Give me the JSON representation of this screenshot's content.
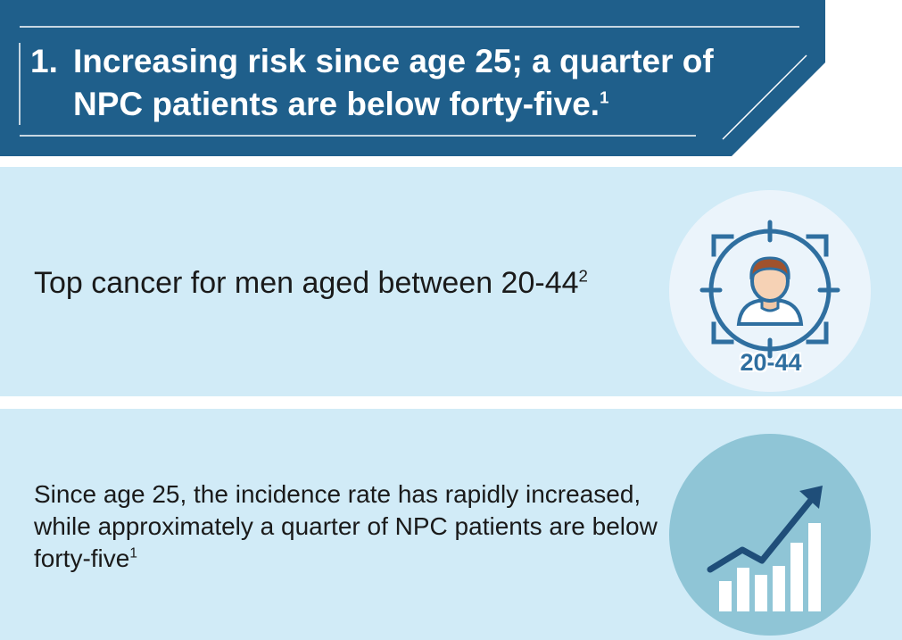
{
  "header": {
    "number": "1.",
    "title": "Increasing risk since age 25; a quarter of NPC patients are below forty-five.",
    "sup": "1",
    "bg_color": "#1f5f8b"
  },
  "panels": [
    {
      "text": "Top cancer for men aged between 20-44",
      "sup": "2",
      "icon": "target-person-icon",
      "badge": "20-44",
      "bg_color": "#d1ebf7"
    },
    {
      "text": "Since age 25, the incidence rate has rapidly increased, while approximately a quarter of NPC patients are below forty-five",
      "sup": "1",
      "icon": "rising-chart-icon",
      "bg_color": "#d1ebf7"
    }
  ]
}
